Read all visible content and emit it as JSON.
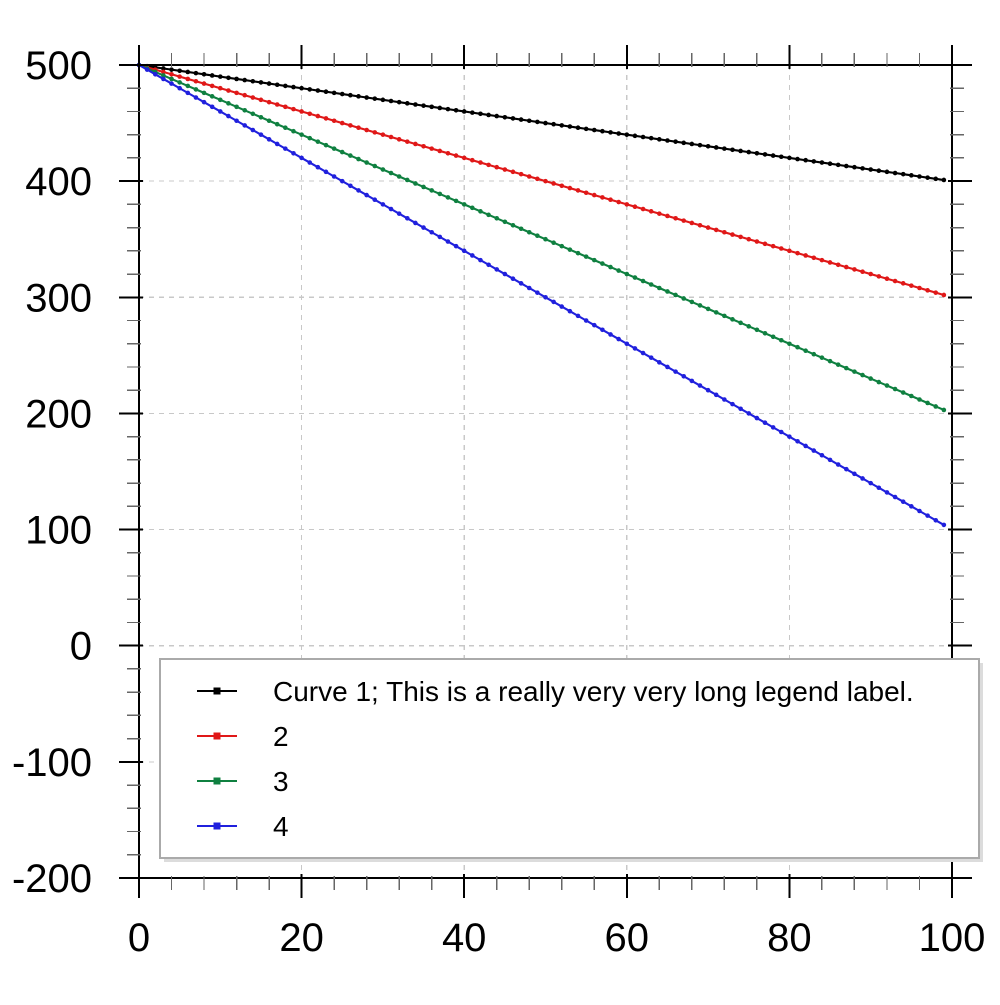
{
  "chart_data": {
    "type": "line",
    "title": "",
    "xlabel": "",
    "ylabel": "",
    "x": {
      "start": 0,
      "end": 99,
      "step": 1
    },
    "series": [
      {
        "label": "Curve 1; This is a really very very long legend label.",
        "color": "#000000",
        "slope": -1,
        "y_start": 500,
        "y_end": 401
      },
      {
        "label": "2",
        "color": "#e01818",
        "slope": -2,
        "y_start": 500,
        "y_end": 302
      },
      {
        "label": "3",
        "color": "#0f8040",
        "slope": -3,
        "y_start": 500,
        "y_end": 203
      },
      {
        "label": "4",
        "color": "#2020dd",
        "slope": -4,
        "y_start": 500,
        "y_end": 104
      }
    ],
    "x_axis": {
      "min": 0,
      "max": 100,
      "major_ticks": [
        0,
        20,
        40,
        60,
        80,
        100
      ],
      "tick_labels": [
        "0",
        "20",
        "40",
        "60",
        "80",
        "100"
      ],
      "minor_step": 4
    },
    "y_axis": {
      "min": -200,
      "max": 500,
      "major_ticks": [
        500,
        400,
        300,
        200,
        100,
        0,
        -100,
        -200
      ],
      "tick_labels": [
        "500",
        "400",
        "300",
        "200",
        "100",
        "0",
        "-100",
        "-200"
      ],
      "minor_step": 20
    },
    "grid": {
      "visible": true,
      "style": "dashed",
      "color": "#c8c8c8"
    },
    "marker": {
      "shape": "dot",
      "every_x": 1
    },
    "legend": {
      "position": "bottom-left",
      "background": "#ffffff",
      "border_color": "#aaaaaa",
      "shadow_color": "#dcdcdc",
      "entries": [
        "Curve 1; This is a really very very long legend label.",
        "2",
        "3",
        "4"
      ]
    }
  }
}
